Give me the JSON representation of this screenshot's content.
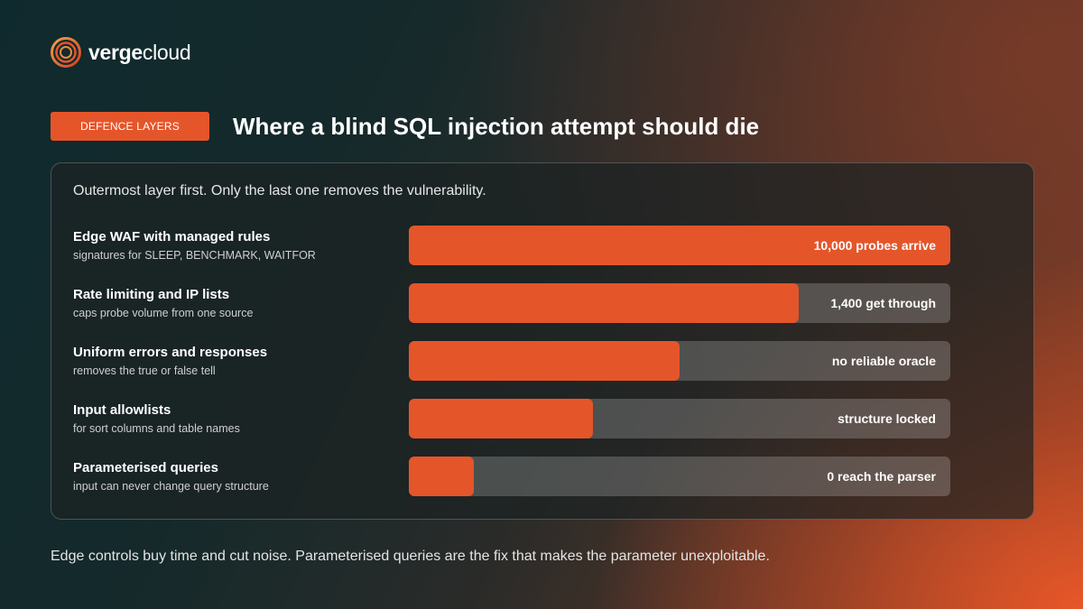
{
  "brand": {
    "name_bold": "verge",
    "name_regular": "cloud",
    "logo_icon": "spiral-ring-logo",
    "accent_color": "#e5552a"
  },
  "header": {
    "tag": "DEFENCE LAYERS",
    "title": "Where a blind SQL injection attempt should die"
  },
  "panel": {
    "intro": "Outermost layer first. Only the last one removes the vulnerability.",
    "layers": [
      {
        "title": "Edge WAF with managed rules",
        "subtitle": "signatures for SLEEP, BENCHMARK, WAITFOR",
        "value_label": "10,000 probes arrive",
        "fill_fraction": 1.0
      },
      {
        "title": "Rate limiting and IP lists",
        "subtitle": "caps probe volume from one source",
        "value_label": "1,400 get through",
        "fill_fraction": 0.72
      },
      {
        "title": "Uniform errors and responses",
        "subtitle": "removes the true or false tell",
        "value_label": "no reliable oracle",
        "fill_fraction": 0.5
      },
      {
        "title": "Input allowlists",
        "subtitle": "for sort columns and table names",
        "value_label": "structure locked",
        "fill_fraction": 0.34
      },
      {
        "title": "Parameterised queries",
        "subtitle": "input can never change query structure",
        "value_label": "0 reach the parser",
        "fill_fraction": 0.12
      }
    ]
  },
  "footer": {
    "text": "Edge controls buy time and cut noise. Parameterised queries are the fix that makes the parameter unexploitable."
  }
}
